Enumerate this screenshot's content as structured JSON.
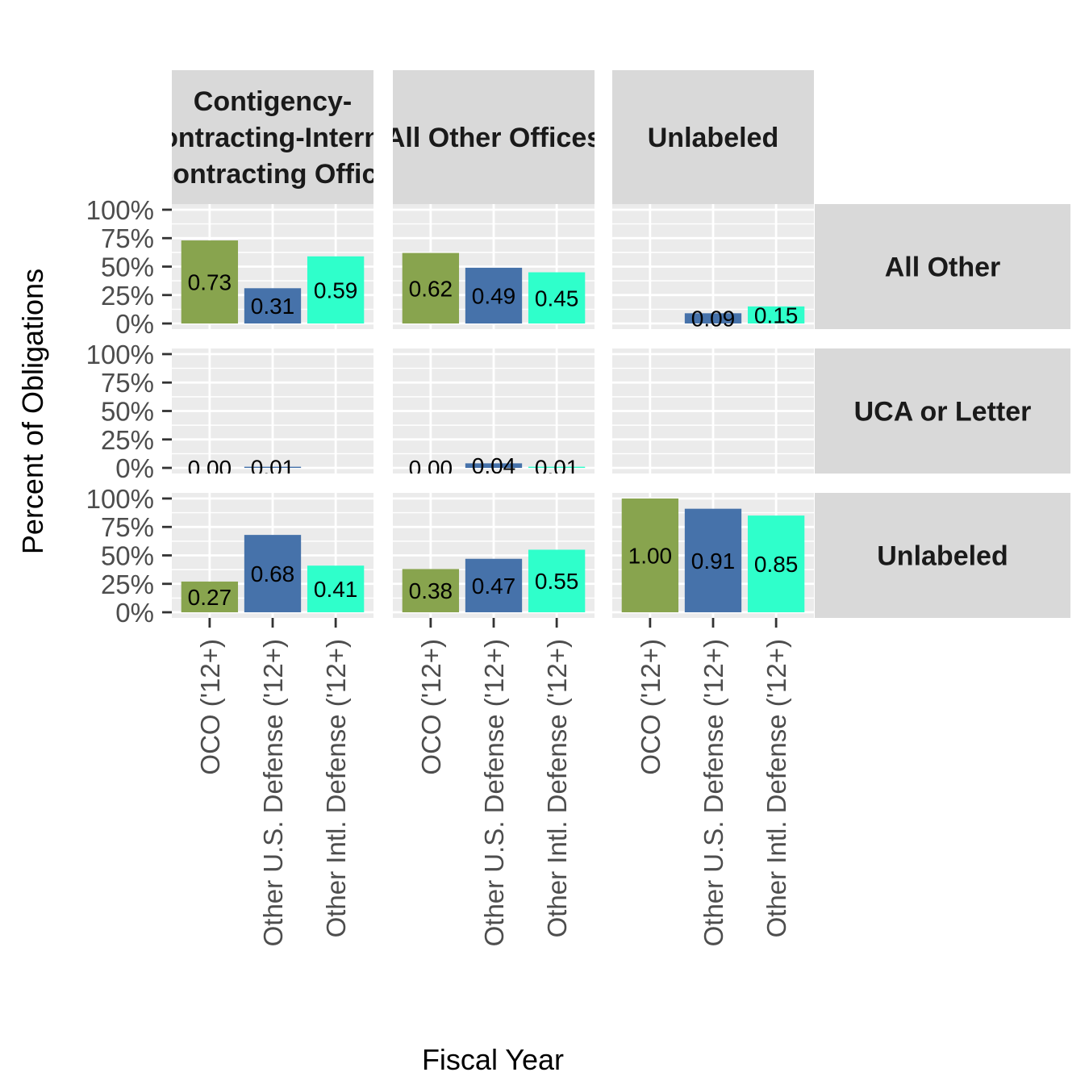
{
  "chart_data": {
    "type": "bar",
    "xlabel": "Fiscal Year",
    "ylabel": "Percent of Obligations",
    "ylim": [
      0,
      1
    ],
    "y_ticks": [
      "0%",
      "25%",
      "50%",
      "75%",
      "100%"
    ],
    "categories": [
      "OCO ('12+)",
      "Other U.S. Defense ('12+)",
      "Other Intl. Defense ('12+)"
    ],
    "column_facets": [
      [
        "Contigency-",
        "Contracting-Internal",
        "Contracting Office"
      ],
      [
        "All Other Offices"
      ],
      [
        "Unlabeled"
      ]
    ],
    "row_facets": [
      "All Other",
      "UCA or Letter",
      "Unlabeled"
    ],
    "colors": {
      "OCO ('12+)": "#88A44E",
      "Other U.S. Defense ('12+)": "#4672AA",
      "Other Intl. Defense ('12+)": "#2FFFCB"
    },
    "panel_background": "#EBEBEB",
    "strip_background": "#D9D9D9",
    "grid": true,
    "panels": [
      [
        [
          0.73,
          0.31,
          0.59
        ],
        [
          0.62,
          0.49,
          0.45
        ],
        [
          null,
          0.09,
          0.15
        ]
      ],
      [
        [
          0.0,
          0.01,
          null
        ],
        [
          0.0,
          0.04,
          0.01
        ],
        [
          null,
          null,
          null
        ]
      ],
      [
        [
          0.27,
          0.68,
          0.41
        ],
        [
          0.38,
          0.47,
          0.55
        ],
        [
          1.0,
          0.91,
          0.85
        ]
      ]
    ],
    "panel_labels": [
      [
        [
          "0.73",
          "0.31",
          "0.59"
        ],
        [
          "0.62",
          "0.49",
          "0.45"
        ],
        [
          null,
          "0.09",
          "0.15"
        ]
      ],
      [
        [
          "0.00",
          "0.01",
          null
        ],
        [
          "0.00",
          "0.04",
          "0.01"
        ],
        [
          null,
          null,
          null
        ]
      ],
      [
        [
          "0.27",
          "0.68",
          "0.41"
        ],
        [
          "0.38",
          "0.47",
          "0.55"
        ],
        [
          "1.00",
          "0.91",
          "0.85"
        ]
      ]
    ]
  }
}
